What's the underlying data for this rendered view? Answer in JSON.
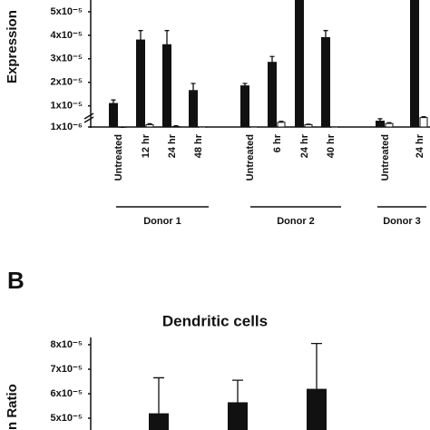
{
  "panel_b_label": "B",
  "chart_data": [
    {
      "type": "bar",
      "y_label": "Expression",
      "categories": [
        "Untreated",
        "12 hr",
        "24 hr",
        "48 hr",
        "Untreated",
        "6 hr",
        "24 hr",
        "40 hr",
        "Untreated",
        "24 hr"
      ],
      "groups": [
        {
          "label": "Donor 1"
        },
        {
          "label": "Donor 2"
        },
        {
          "label": "Donor 3"
        }
      ],
      "series": [
        {
          "color": "#111111",
          "values": [
            1.1e-05,
            3.8e-05,
            3.6e-05,
            1.65e-05,
            1.85e-05,
            2.85e-05,
            5.8e-05,
            3.9e-05,
            3.5e-06,
            5.8e-05
          ],
          "errors": [
            1.5e-06,
            4e-06,
            6e-06,
            3e-06,
            1e-06,
            2.5e-06,
            null,
            3e-06,
            1e-06,
            null
          ]
        },
        {
          "color": "#ffffff",
          "values": [
            5e-07,
            2e-06,
            1.2e-06,
            3e-07,
            3e-07,
            3e-06,
            2e-06,
            3e-07,
            2.5e-06,
            5e-06
          ],
          "errors": [
            2e-07,
            4e-07,
            3e-07,
            1e-07,
            1e-07,
            4e-07,
            2e-07,
            1e-07,
            3e-07,
            4e-07
          ]
        }
      ],
      "ylim": [
        1e-06,
        5.5e-05
      ],
      "yticks": [
        {
          "value": 1e-06,
          "label": "1x10⁻⁶"
        },
        {
          "value": 1e-05,
          "label": "1x10⁻⁵"
        },
        {
          "value": 2e-05,
          "label": "2x10⁻⁵"
        },
        {
          "value": 3e-05,
          "label": "3x10⁻⁵"
        },
        {
          "value": 4e-05,
          "label": "4x10⁻⁵"
        },
        {
          "value": 5e-05,
          "label": "5x10⁻⁵"
        }
      ]
    },
    {
      "type": "bar",
      "title": "Dendritic cells",
      "y_label": "n Ratio",
      "categories": [
        null,
        null,
        null
      ],
      "series": [
        {
          "color": "#111111",
          "values": [
            5.2e-05,
            5.65e-05,
            6.2e-05
          ],
          "errors": [
            1.45e-05,
            9e-06,
            1.85e-05
          ]
        }
      ],
      "ylim": [
        4.5e-05,
        8e-05
      ],
      "yticks": [
        {
          "value": 5e-05,
          "label": "5x10⁻⁵"
        },
        {
          "value": 6e-05,
          "label": "6x10⁻⁵"
        },
        {
          "value": 7e-05,
          "label": "7x10⁻⁵"
        },
        {
          "value": 8e-05,
          "label": "8x10⁻⁵"
        }
      ]
    }
  ]
}
